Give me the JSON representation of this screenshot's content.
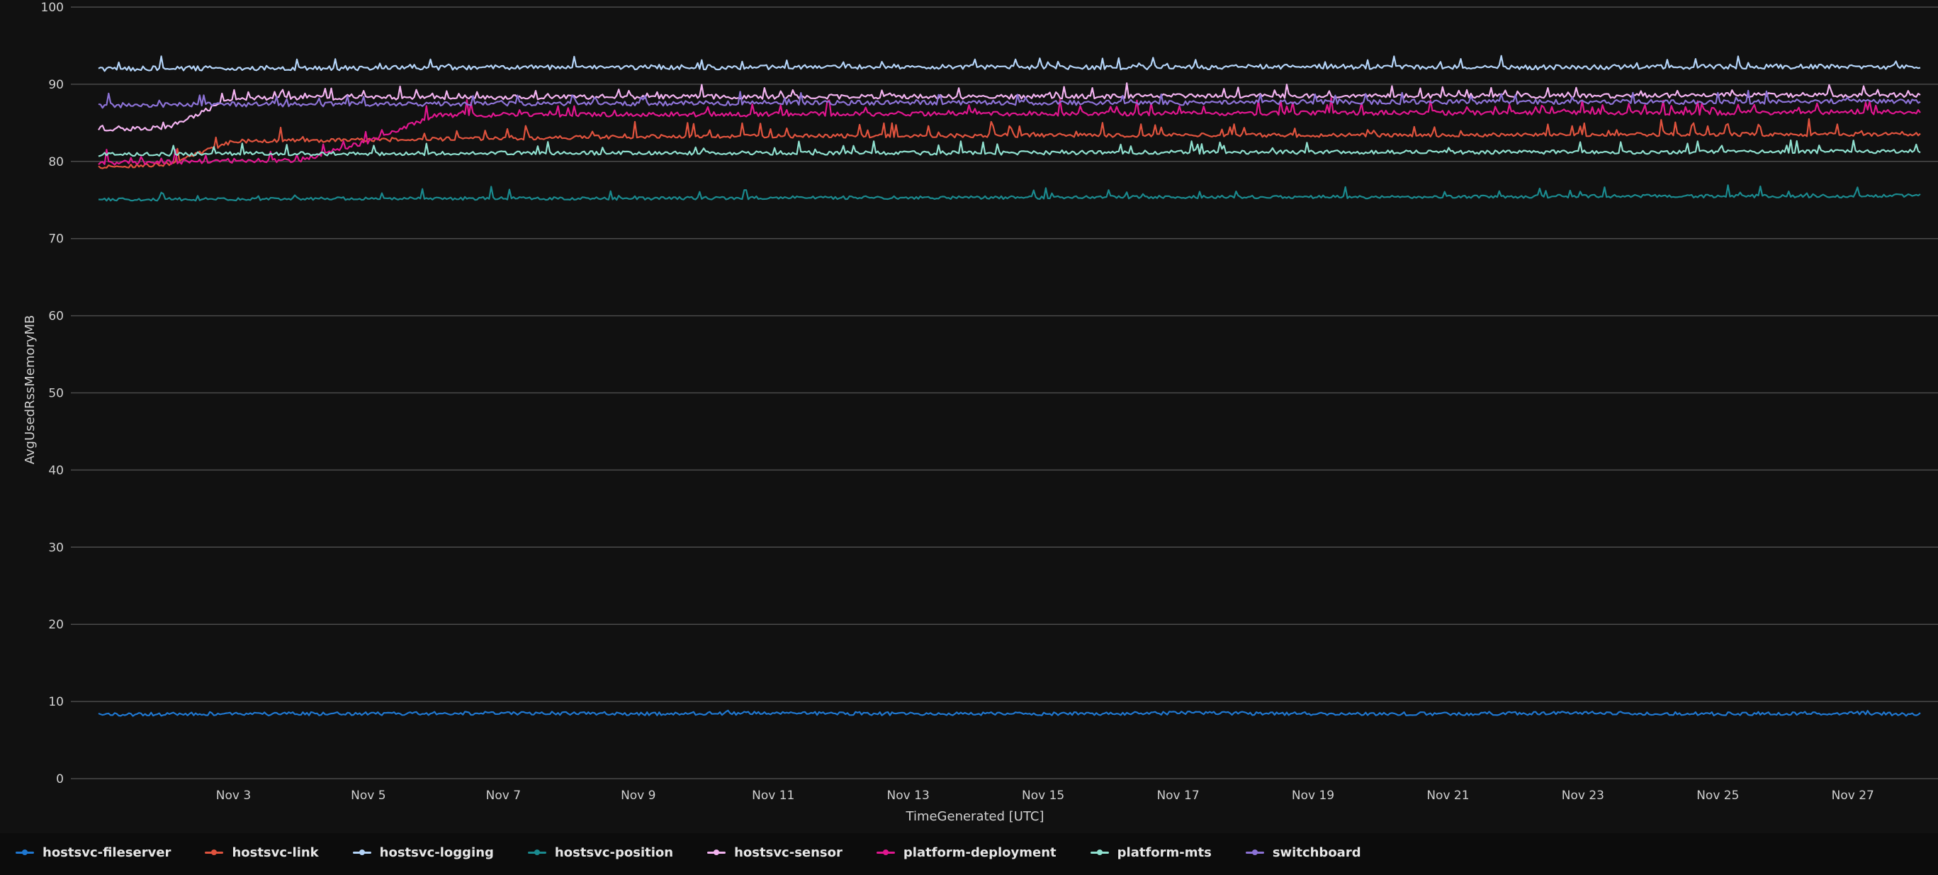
{
  "chart_data": {
    "type": "line",
    "title": "",
    "xlabel": "TimeGenerated [UTC]",
    "ylabel": "AvgUsedRssMemoryMB",
    "ylim": [
      0,
      100
    ],
    "yticks": [
      "0",
      "10",
      "20",
      "30",
      "40",
      "50",
      "60",
      "70",
      "80",
      "90",
      "100"
    ],
    "x_range": [
      "2023-11-01",
      "2023-11-28"
    ],
    "xticks": [
      {
        "label": "Nov 3",
        "date": "2023-11-03"
      },
      {
        "label": "Nov 5",
        "date": "2023-11-05"
      },
      {
        "label": "Nov 7",
        "date": "2023-11-07"
      },
      {
        "label": "Nov 9",
        "date": "2023-11-09"
      },
      {
        "label": "Nov 11",
        "date": "2023-11-11"
      },
      {
        "label": "Nov 13",
        "date": "2023-11-13"
      },
      {
        "label": "Nov 15",
        "date": "2023-11-15"
      },
      {
        "label": "Nov 17",
        "date": "2023-11-17"
      },
      {
        "label": "Nov 19",
        "date": "2023-11-19"
      },
      {
        "label": "Nov 21",
        "date": "2023-11-21"
      },
      {
        "label": "Nov 23",
        "date": "2023-11-23"
      },
      {
        "label": "Nov 25",
        "date": "2023-11-25"
      },
      {
        "label": "Nov 27",
        "date": "2023-11-27"
      }
    ],
    "grid": true,
    "legend_position": "bottom-left",
    "series": [
      {
        "name": "hostsvc-fileserver",
        "color": "#1f77d0",
        "points": [
          [
            "2023-11-01",
            8.3
          ],
          [
            "2023-11-03",
            8.4
          ],
          [
            "2023-11-05",
            8.4
          ],
          [
            "2023-11-07",
            8.5
          ],
          [
            "2023-11-09",
            8.4
          ],
          [
            "2023-11-11",
            8.5
          ],
          [
            "2023-11-13",
            8.4
          ],
          [
            "2023-11-15",
            8.4
          ],
          [
            "2023-11-17",
            8.5
          ],
          [
            "2023-11-19",
            8.4
          ],
          [
            "2023-11-21",
            8.4
          ],
          [
            "2023-11-23",
            8.5
          ],
          [
            "2023-11-25",
            8.4
          ],
          [
            "2023-11-27",
            8.5
          ],
          [
            "2023-11-28",
            8.3
          ]
        ]
      },
      {
        "name": "hostsvc-link",
        "color": "#e0533e",
        "points": [
          [
            "2023-11-01",
            79.3
          ],
          [
            "2023-11-02",
            79.6
          ],
          [
            "2023-11-03",
            82.6
          ],
          [
            "2023-11-05",
            82.8
          ],
          [
            "2023-11-07",
            83.0
          ],
          [
            "2023-11-09",
            83.2
          ],
          [
            "2023-11-11",
            83.3
          ],
          [
            "2023-11-13",
            83.3
          ],
          [
            "2023-11-15",
            83.4
          ],
          [
            "2023-11-17",
            83.4
          ],
          [
            "2023-11-19",
            83.4
          ],
          [
            "2023-11-21",
            83.4
          ],
          [
            "2023-11-23",
            83.5
          ],
          [
            "2023-11-25",
            83.5
          ],
          [
            "2023-11-27",
            83.5
          ],
          [
            "2023-11-28",
            83.6
          ]
        ]
      },
      {
        "name": "hostsvc-logging",
        "color": "#b4d4f8",
        "points": [
          [
            "2023-11-01",
            92.0
          ],
          [
            "2023-11-03",
            92.1
          ],
          [
            "2023-11-05",
            92.1
          ],
          [
            "2023-11-07",
            92.2
          ],
          [
            "2023-11-09",
            92.2
          ],
          [
            "2023-11-11",
            92.2
          ],
          [
            "2023-11-13",
            92.3
          ],
          [
            "2023-11-15",
            92.2
          ],
          [
            "2023-11-17",
            92.2
          ],
          [
            "2023-11-19",
            92.3
          ],
          [
            "2023-11-21",
            92.2
          ],
          [
            "2023-11-23",
            92.2
          ],
          [
            "2023-11-25",
            92.3
          ],
          [
            "2023-11-27",
            92.3
          ],
          [
            "2023-11-28",
            92.2
          ]
        ]
      },
      {
        "name": "hostsvc-position",
        "color": "#1a8a8f",
        "points": [
          [
            "2023-11-01",
            75.1
          ],
          [
            "2023-11-03",
            75.1
          ],
          [
            "2023-11-05",
            75.2
          ],
          [
            "2023-11-07",
            75.2
          ],
          [
            "2023-11-09",
            75.2
          ],
          [
            "2023-11-11",
            75.3
          ],
          [
            "2023-11-13",
            75.3
          ],
          [
            "2023-11-15",
            75.3
          ],
          [
            "2023-11-17",
            75.4
          ],
          [
            "2023-11-19",
            75.4
          ],
          [
            "2023-11-21",
            75.4
          ],
          [
            "2023-11-23",
            75.5
          ],
          [
            "2023-11-25",
            75.5
          ],
          [
            "2023-11-27",
            75.5
          ],
          [
            "2023-11-28",
            75.6
          ]
        ]
      },
      {
        "name": "hostsvc-sensor",
        "color": "#f3b3f0",
        "points": [
          [
            "2023-11-01",
            84.2
          ],
          [
            "2023-11-02",
            84.3
          ],
          [
            "2023-11-03",
            88.2
          ],
          [
            "2023-11-05",
            88.3
          ],
          [
            "2023-11-07",
            88.3
          ],
          [
            "2023-11-09",
            88.4
          ],
          [
            "2023-11-11",
            88.4
          ],
          [
            "2023-11-13",
            88.4
          ],
          [
            "2023-11-15",
            88.4
          ],
          [
            "2023-11-17",
            88.5
          ],
          [
            "2023-11-19",
            88.5
          ],
          [
            "2023-11-21",
            88.5
          ],
          [
            "2023-11-23",
            88.5
          ],
          [
            "2023-11-25",
            88.6
          ],
          [
            "2023-11-27",
            88.6
          ],
          [
            "2023-11-28",
            88.6
          ]
        ]
      },
      {
        "name": "platform-deployment",
        "color": "#e0168f",
        "points": [
          [
            "2023-11-01",
            79.8
          ],
          [
            "2023-11-04",
            80.2
          ],
          [
            "2023-11-05",
            82.6
          ],
          [
            "2023-11-06",
            86.0
          ],
          [
            "2023-11-09",
            86.1
          ],
          [
            "2023-11-11",
            86.1
          ],
          [
            "2023-11-13",
            86.2
          ],
          [
            "2023-11-15",
            86.2
          ],
          [
            "2023-11-17",
            86.2
          ],
          [
            "2023-11-19",
            86.3
          ],
          [
            "2023-11-21",
            86.3
          ],
          [
            "2023-11-23",
            86.3
          ],
          [
            "2023-11-25",
            86.3
          ],
          [
            "2023-11-27",
            86.4
          ],
          [
            "2023-11-28",
            86.4
          ]
        ]
      },
      {
        "name": "platform-mts",
        "color": "#8fe0cf",
        "points": [
          [
            "2023-11-01",
            80.9
          ],
          [
            "2023-11-03",
            81.0
          ],
          [
            "2023-11-05",
            81.0
          ],
          [
            "2023-11-07",
            81.1
          ],
          [
            "2023-11-09",
            81.1
          ],
          [
            "2023-11-11",
            81.1
          ],
          [
            "2023-11-13",
            81.1
          ],
          [
            "2023-11-15",
            81.1
          ],
          [
            "2023-11-17",
            81.2
          ],
          [
            "2023-11-19",
            81.2
          ],
          [
            "2023-11-21",
            81.2
          ],
          [
            "2023-11-23",
            81.2
          ],
          [
            "2023-11-25",
            81.2
          ],
          [
            "2023-11-27",
            81.3
          ],
          [
            "2023-11-28",
            81.3
          ]
        ]
      },
      {
        "name": "switchboard",
        "color": "#8c72d6",
        "points": [
          [
            "2023-11-01",
            87.2
          ],
          [
            "2023-11-03",
            87.4
          ],
          [
            "2023-11-05",
            87.4
          ],
          [
            "2023-11-07",
            87.5
          ],
          [
            "2023-11-09",
            87.5
          ],
          [
            "2023-11-11",
            87.6
          ],
          [
            "2023-11-13",
            87.6
          ],
          [
            "2023-11-15",
            87.6
          ],
          [
            "2023-11-17",
            87.6
          ],
          [
            "2023-11-19",
            87.7
          ],
          [
            "2023-11-21",
            87.7
          ],
          [
            "2023-11-23",
            87.7
          ],
          [
            "2023-11-25",
            87.7
          ],
          [
            "2023-11-27",
            87.8
          ],
          [
            "2023-11-28",
            87.8
          ]
        ]
      }
    ]
  }
}
